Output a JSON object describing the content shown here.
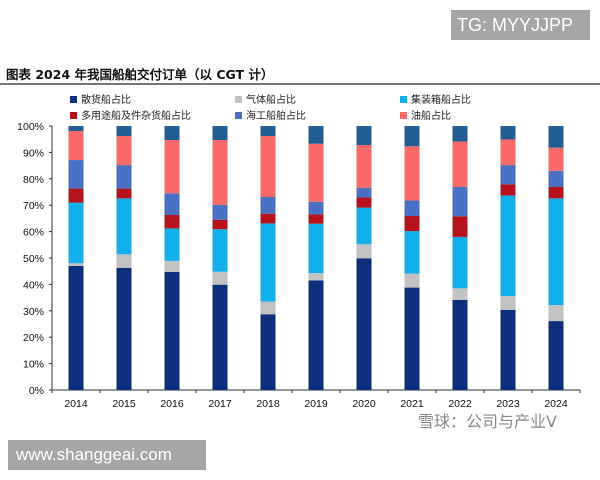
{
  "watermarks": {
    "top": "TG: MYYJJPP",
    "bottom": "www.shanggeai.com",
    "overlay": "雪球：公司与产业V"
  },
  "chart_data": {
    "type": "bar",
    "stacked": true,
    "title": "图表  2024 年我国船舶交付订单（以 CGT 计）",
    "xlabel": "",
    "ylabel": "",
    "ylim": [
      0,
      100
    ],
    "yticks": [
      "0%",
      "10%",
      "20%",
      "30%",
      "40%",
      "50%",
      "60%",
      "70%",
      "80%",
      "90%",
      "100%"
    ],
    "grid": false,
    "legend_placement": "top",
    "categories": [
      "2014",
      "2015",
      "2016",
      "2017",
      "2018",
      "2019",
      "2020",
      "2021",
      "2022",
      "2023",
      "2024"
    ],
    "series": [
      {
        "name": "散货船占比",
        "color": "#0d2f7a",
        "values": [
          47.0,
          46.3,
          44.7,
          39.9,
          28.7,
          41.5,
          49.9,
          38.8,
          34.1,
          30.3,
          26.1
        ]
      },
      {
        "name": "气体船占比",
        "color": "#c2c2c2",
        "values": [
          1.0,
          5.1,
          4.2,
          4.9,
          4.8,
          2.8,
          5.3,
          5.3,
          4.4,
          5.3,
          6.1
        ]
      },
      {
        "name": "集装箱船占比",
        "color": "#14aee8",
        "values": [
          23.0,
          21.2,
          12.3,
          16.1,
          29.6,
          18.7,
          13.9,
          16.1,
          19.5,
          38.1,
          40.4
        ]
      },
      {
        "name": "多用途船及件杂货船占比",
        "color": "#b5121b",
        "values": [
          5.3,
          3.7,
          5.1,
          3.6,
          3.7,
          3.5,
          3.8,
          5.7,
          7.8,
          4.2,
          4.3
        ]
      },
      {
        "name": "海工船舶占比",
        "color": "#4a70c2",
        "values": [
          10.8,
          8.9,
          8.2,
          5.6,
          6.3,
          4.8,
          3.7,
          5.9,
          11.1,
          7.3,
          6.1
        ]
      },
      {
        "name": "油船占比",
        "color": "#f86a6a",
        "values": [
          11.0,
          11.0,
          20.2,
          24.6,
          23.1,
          22.0,
          16.2,
          20.5,
          17.2,
          9.7,
          8.8
        ]
      },
      {
        "color": "#215d91",
        "values": [
          1.9,
          3.8,
          5.3,
          5.3,
          3.8,
          6.7,
          7.2,
          7.7,
          5.9,
          5.1,
          8.2
        ]
      }
    ]
  }
}
